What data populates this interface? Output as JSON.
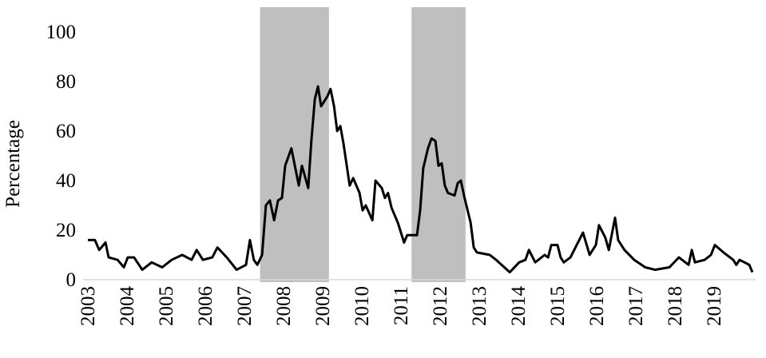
{
  "chart_data": {
    "type": "line",
    "y_label": "Percentage",
    "xlim": [
      2003,
      2020
    ],
    "xticks": [
      2003,
      2004,
      2005,
      2006,
      2007,
      2008,
      2009,
      2010,
      2011,
      2012,
      2013,
      2014,
      2015,
      2016,
      2017,
      2018,
      2019
    ],
    "ylim": [
      0,
      110
    ],
    "yticks": [
      0,
      20,
      40,
      60,
      80,
      100
    ],
    "grid": false,
    "shaded_periods": [
      {
        "start": 2007.4,
        "end": 2009.16
      },
      {
        "start": 2011.27,
        "end": 2012.65
      }
    ],
    "shade_color": "#bfbfbf",
    "series": [
      {
        "color": "#000000",
        "x": [
          2003.0,
          2003.18,
          2003.29,
          2003.45,
          2003.53,
          2003.76,
          2003.92,
          2004.02,
          2004.18,
          2004.39,
          2004.63,
          2004.9,
          2005.14,
          2005.41,
          2005.65,
          2005.78,
          2005.94,
          2006.18,
          2006.31,
          2006.55,
          2006.8,
          2007.04,
          2007.14,
          2007.24,
          2007.33,
          2007.45,
          2007.55,
          2007.65,
          2007.76,
          2007.86,
          2007.96,
          2008.04,
          2008.2,
          2008.39,
          2008.47,
          2008.63,
          2008.71,
          2008.8,
          2008.88,
          2008.96,
          2009.12,
          2009.2,
          2009.29,
          2009.37,
          2009.45,
          2009.53,
          2009.69,
          2009.78,
          2009.94,
          2010.02,
          2010.1,
          2010.27,
          2010.35,
          2010.51,
          2010.59,
          2010.67,
          2010.76,
          2010.92,
          2011.08,
          2011.16,
          2011.41,
          2011.49,
          2011.57,
          2011.69,
          2011.78,
          2011.88,
          2011.96,
          2012.04,
          2012.12,
          2012.2,
          2012.37,
          2012.45,
          2012.53,
          2012.61,
          2012.78,
          2012.86,
          2012.94,
          2013.27,
          2013.43,
          2013.78,
          2014.02,
          2014.18,
          2014.27,
          2014.43,
          2014.67,
          2014.76,
          2014.84,
          2015.0,
          2015.08,
          2015.16,
          2015.33,
          2015.49,
          2015.65,
          2015.82,
          2015.98,
          2016.06,
          2016.22,
          2016.31,
          2016.47,
          2016.55,
          2016.71,
          2016.96,
          2017.24,
          2017.49,
          2017.86,
          2018.1,
          2018.35,
          2018.43,
          2018.51,
          2018.76,
          2018.92,
          2019.02,
          2019.24,
          2019.49,
          2019.57,
          2019.65,
          2019.9,
          2019.98
        ],
        "values": [
          16,
          16,
          12,
          15,
          9,
          8,
          5,
          9,
          9,
          4,
          7,
          5,
          8,
          10,
          8,
          12,
          8,
          9,
          13,
          9,
          4,
          6,
          16,
          8,
          6,
          10,
          30,
          32,
          24,
          32,
          33,
          46,
          53,
          38,
          46,
          37,
          56,
          73,
          78,
          70,
          74,
          77,
          70,
          60,
          62,
          55,
          38,
          41,
          35,
          28,
          30,
          24,
          40,
          37,
          33,
          35,
          29,
          23,
          15,
          18,
          18,
          28,
          45,
          53,
          57,
          56,
          46,
          47,
          38,
          35,
          34,
          39,
          40,
          34,
          23,
          13,
          11,
          10,
          8,
          3,
          7,
          8,
          12,
          7,
          10,
          9,
          14,
          14,
          9,
          7,
          9,
          14,
          19,
          10,
          14,
          22,
          17,
          12,
          25,
          16,
          12,
          8,
          5,
          4,
          5,
          9,
          6,
          12,
          7,
          8,
          10,
          14,
          11,
          8,
          6,
          8,
          6,
          3
        ]
      }
    ]
  }
}
